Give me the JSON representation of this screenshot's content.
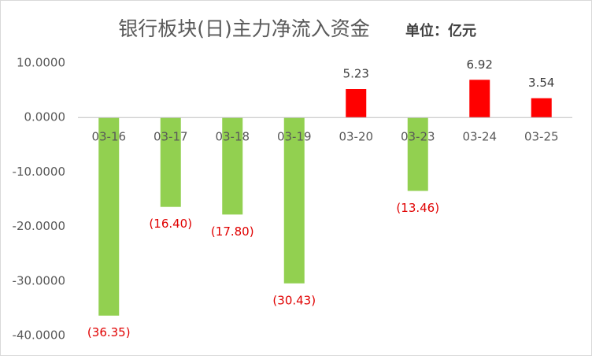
{
  "chart_data": {
    "type": "bar",
    "title": "银行板块(日)主力净流入资金",
    "subtitle": "单位：亿元",
    "categories": [
      "03-16",
      "03-17",
      "03-18",
      "03-19",
      "03-20",
      "03-23",
      "03-24",
      "03-25"
    ],
    "values": [
      -36.35,
      -16.4,
      -17.8,
      -30.43,
      5.23,
      -13.46,
      6.92,
      3.54
    ],
    "value_labels": [
      "(36.35)",
      "(16.40)",
      "(17.80)",
      "(30.43)",
      "5.23",
      "(13.46)",
      "6.92",
      "3.54"
    ],
    "colors": [
      "#92d050",
      "#92d050",
      "#92d050",
      "#92d050",
      "#ff0000",
      "#92d050",
      "#ff0000",
      "#ff0000"
    ],
    "label_colors": [
      "#e00000",
      "#e00000",
      "#e00000",
      "#e00000",
      "#404040",
      "#e00000",
      "#404040",
      "#404040"
    ],
    "ylim": [
      -40,
      10
    ],
    "yticks": [
      {
        "value": -40,
        "label": "-40.0000"
      },
      {
        "value": -30,
        "label": "-30.0000"
      },
      {
        "value": -20,
        "label": "-20.0000"
      },
      {
        "value": -10,
        "label": "-10.0000"
      },
      {
        "value": 0,
        "label": "0.0000"
      },
      {
        "value": 10,
        "label": "10.0000"
      }
    ],
    "grid": false
  }
}
